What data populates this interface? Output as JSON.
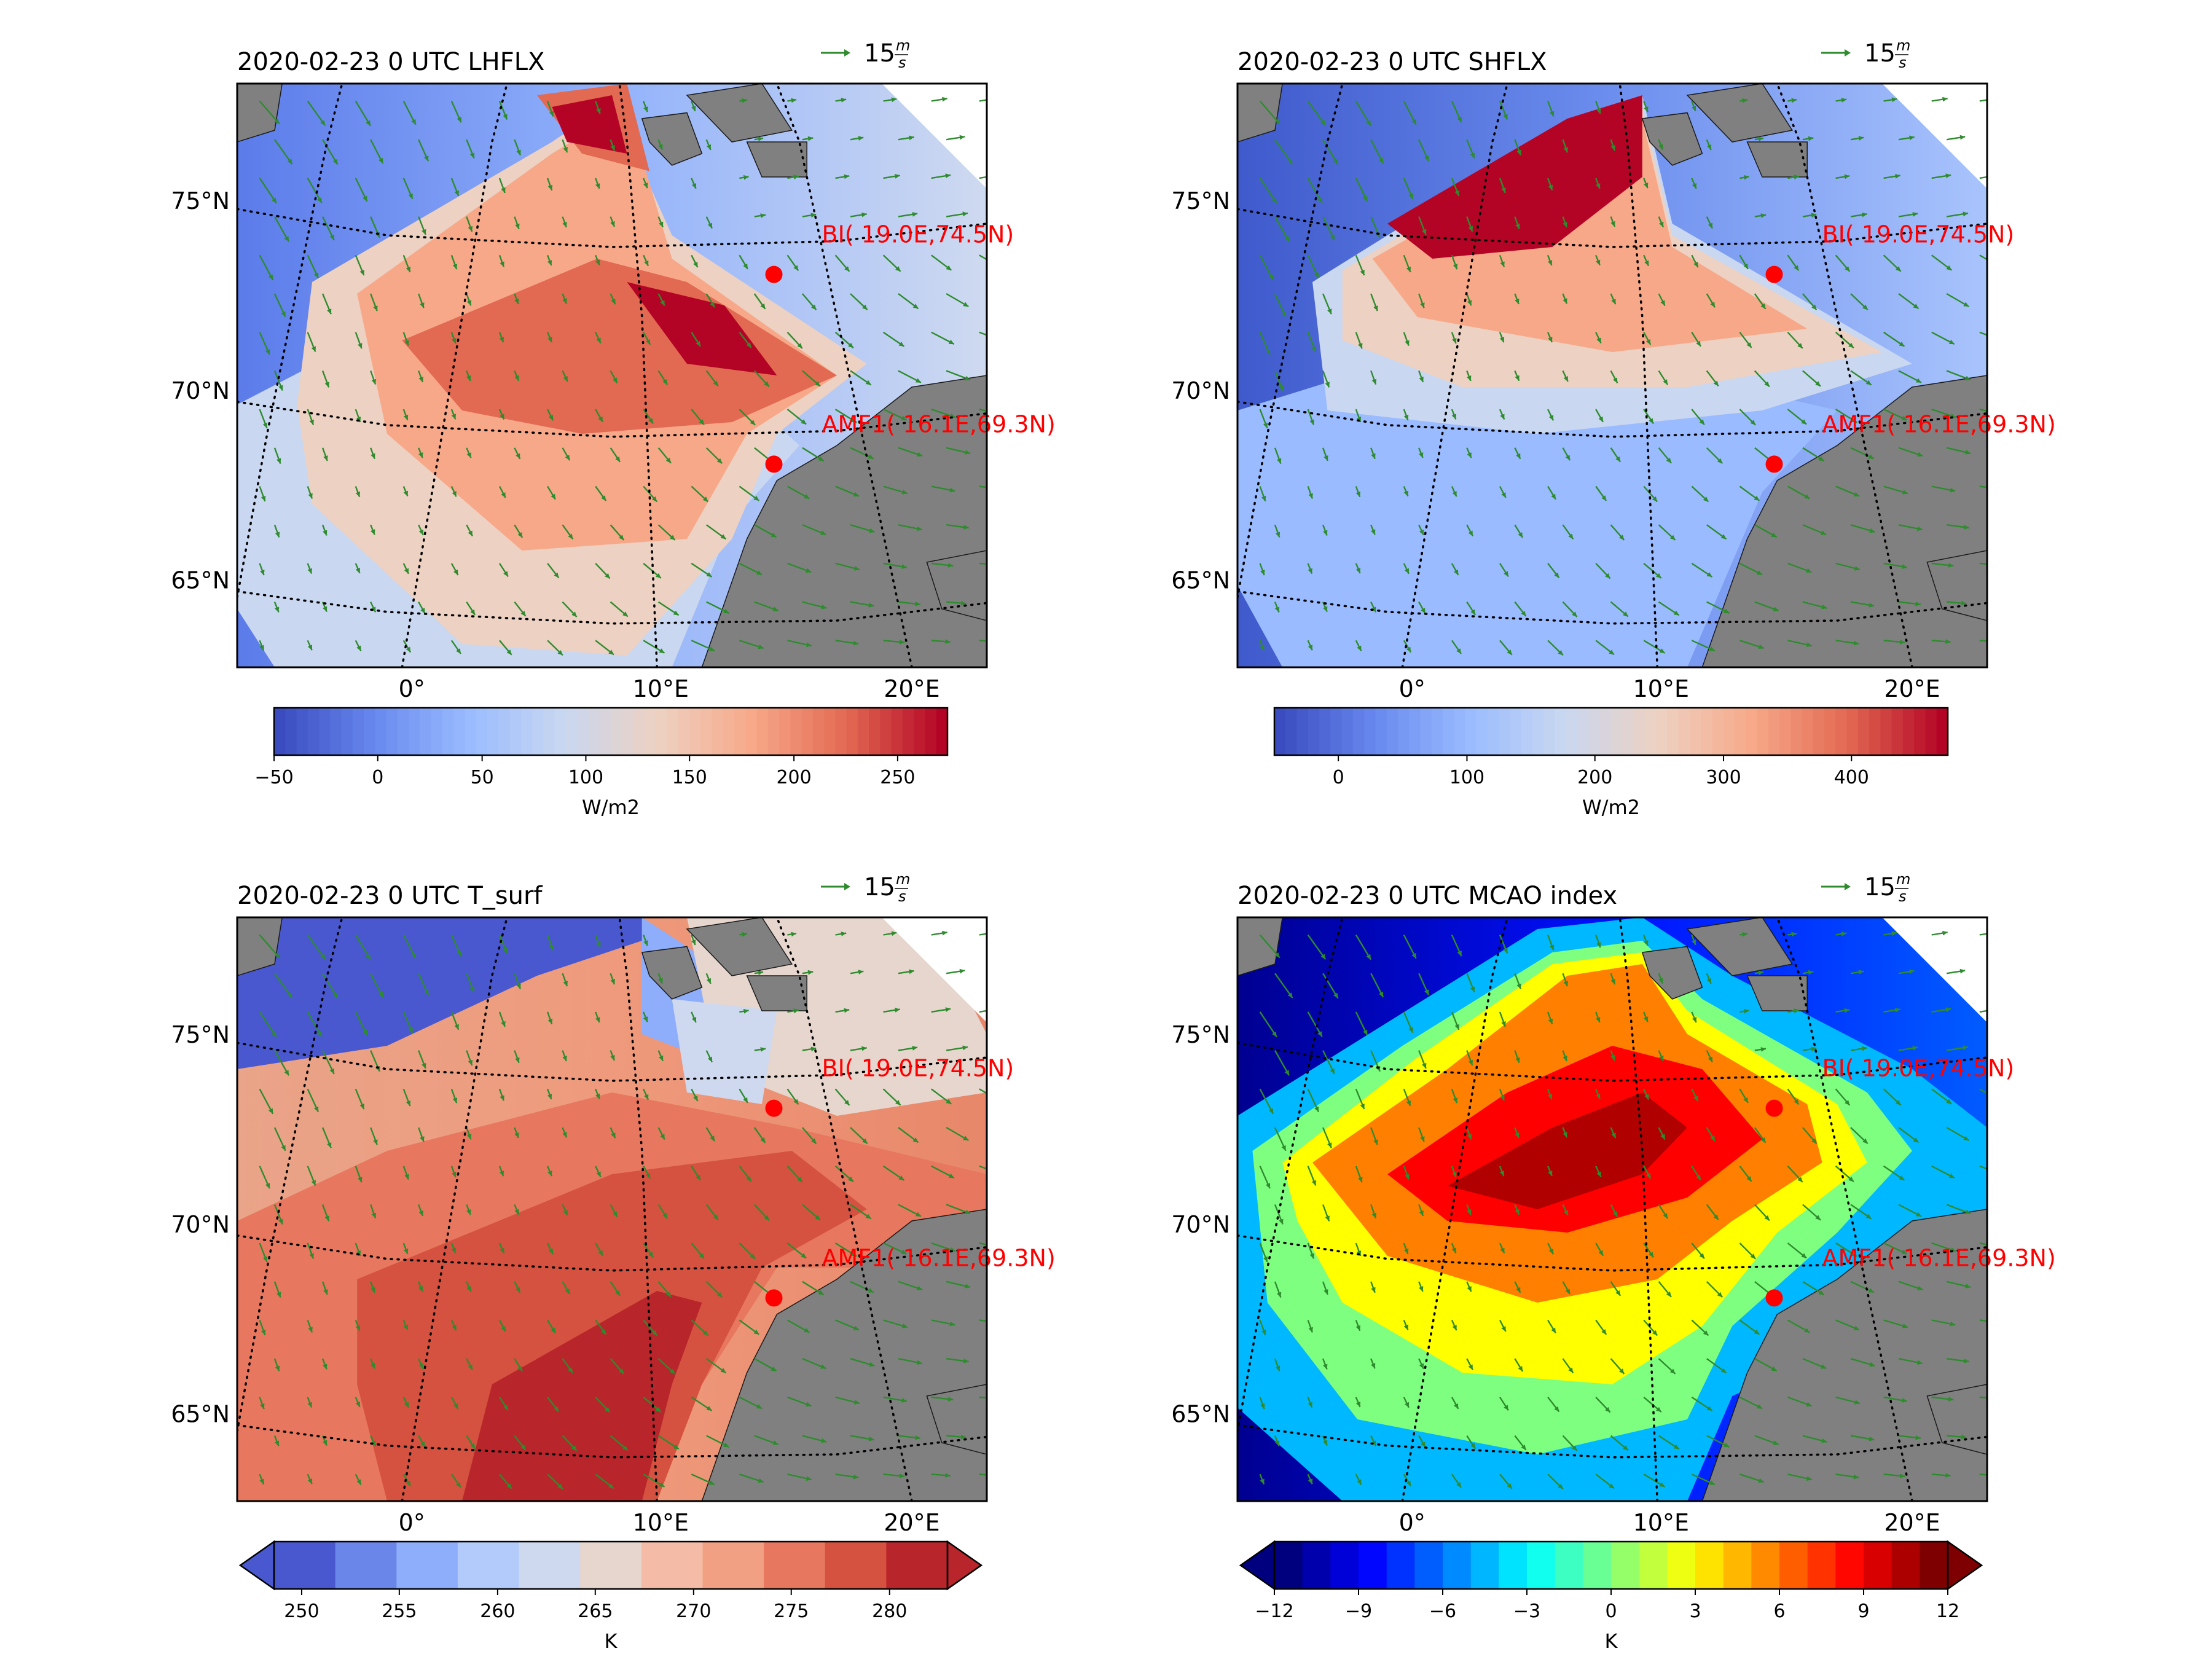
{
  "figure": {
    "panels": [
      {
        "id": "lhflx",
        "title": "2020-02-23 0 UTC LHFLX",
        "field": "lhflx",
        "colorbar": {
          "unit": "W/m2",
          "ticks": [
            "−50",
            "0",
            "50",
            "100",
            "150",
            "200",
            "250"
          ],
          "extend": "neither"
        }
      },
      {
        "id": "shflx",
        "title": "2020-02-23 0 UTC SHFLX",
        "field": "shflx",
        "colorbar": {
          "unit": "W/m2",
          "ticks": [
            "0",
            "100",
            "200",
            "300",
            "400"
          ],
          "extend": "neither"
        }
      },
      {
        "id": "tsurf",
        "title": "2020-02-23 0 UTC T_surf",
        "field": "tsurf",
        "colorbar": {
          "unit": "K",
          "ticks": [
            "250",
            "255",
            "260",
            "265",
            "270",
            "275",
            "280"
          ],
          "extend": "both"
        }
      },
      {
        "id": "mcao",
        "title": "2020-02-23 0 UTC MCAO index",
        "field": "mcao",
        "colorbar": {
          "unit": "K",
          "ticks": [
            "−12",
            "−9",
            "−6",
            "−3",
            "0",
            "3",
            "6",
            "9",
            "12"
          ],
          "extend": "both"
        }
      }
    ],
    "wind_key": {
      "value": "15",
      "unit_num": "m",
      "unit_den": "s",
      "arrow_color": "#2e8b2e"
    },
    "lat_labels": [
      "75°N",
      "70°N",
      "65°N"
    ],
    "lon_labels": [
      "0°",
      "10°E",
      "20°E"
    ],
    "stations": [
      {
        "label": "BI( 19.0E,74.5N)",
        "color": "#ff0000"
      },
      {
        "label": "AMF1( 16.1E,69.3N)",
        "color": "#ff0000"
      }
    ],
    "colors": {
      "land": "#808080",
      "wind_arrow": "#2e8b2e",
      "station": "#ff0000",
      "graticule": "#000000"
    }
  }
}
